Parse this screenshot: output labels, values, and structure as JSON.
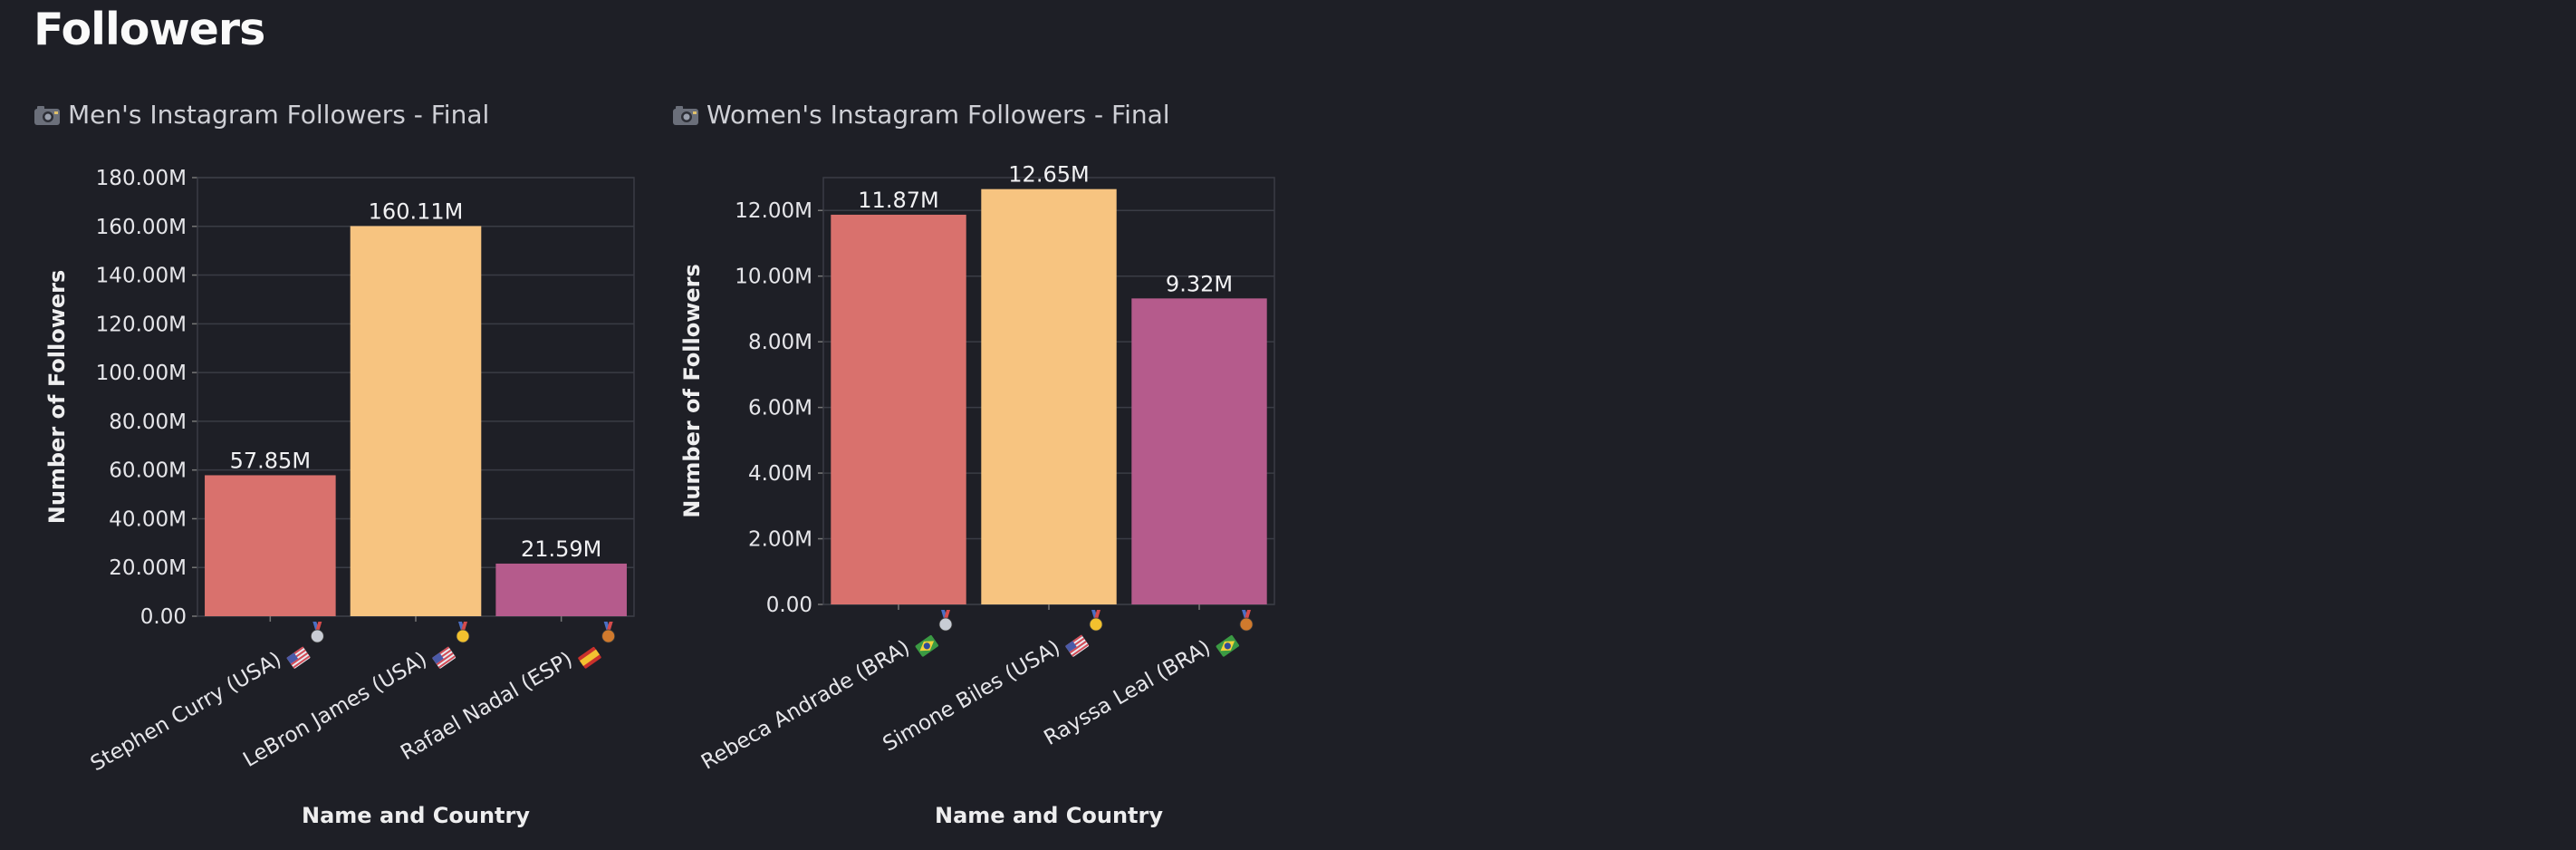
{
  "page": {
    "title": "Followers"
  },
  "charts": [
    {
      "heading": "Men's Instagram Followers - Final",
      "icon": "camera-icon"
    },
    {
      "heading": "Women's Instagram Followers - Final",
      "icon": "camera-icon"
    }
  ],
  "chart_data": [
    {
      "type": "bar",
      "title": "Men's Instagram Followers - Final",
      "xlabel": "Name and Country",
      "ylabel": "Number of Followers",
      "ylim": [
        0,
        180000000
      ],
      "yticks": [
        0,
        20000000,
        40000000,
        60000000,
        80000000,
        100000000,
        120000000,
        140000000,
        160000000,
        180000000
      ],
      "ytick_labels": [
        "0.00",
        "20.00M",
        "40.00M",
        "60.00M",
        "80.00M",
        "100.00M",
        "120.00M",
        "140.00M",
        "160.00M",
        "180.00M"
      ],
      "categories": [
        "Stephen Curry (USA)",
        "LeBron James (USA)",
        "Rafael Nadal (ESP)"
      ],
      "flags": [
        "us-flag-icon",
        "us-flag-icon",
        "spain-flag-icon"
      ],
      "medals": [
        "silver-medal-icon",
        "gold-medal-icon",
        "bronze-medal-icon"
      ],
      "values": [
        57850000,
        160110000,
        21590000
      ],
      "value_labels": [
        "57.85M",
        "160.11M",
        "21.59M"
      ],
      "colors": [
        "#d9716d",
        "#f7c480",
        "#b55b8c"
      ],
      "grid": true,
      "legend": "none"
    },
    {
      "type": "bar",
      "title": "Women's Instagram Followers - Final",
      "xlabel": "Name and Country",
      "ylabel": "Number of Followers",
      "ylim": [
        0,
        13000000
      ],
      "yticks": [
        0,
        2000000,
        4000000,
        6000000,
        8000000,
        10000000,
        12000000
      ],
      "ytick_labels": [
        "0.00",
        "2.00M",
        "4.00M",
        "6.00M",
        "8.00M",
        "10.00M",
        "12.00M"
      ],
      "categories": [
        "Rebeca Andrade (BRA)",
        "Simone Biles (USA)",
        "Rayssa Leal (BRA)"
      ],
      "flags": [
        "brazil-flag-icon",
        "us-flag-icon",
        "brazil-flag-icon"
      ],
      "medals": [
        "silver-medal-icon",
        "gold-medal-icon",
        "bronze-medal-icon"
      ],
      "values": [
        11870000,
        12650000,
        9320000
      ],
      "value_labels": [
        "11.87M",
        "12.65M",
        "9.32M"
      ],
      "colors": [
        "#d9716d",
        "#f7c480",
        "#b55b8c"
      ],
      "grid": true,
      "legend": "none"
    }
  ]
}
